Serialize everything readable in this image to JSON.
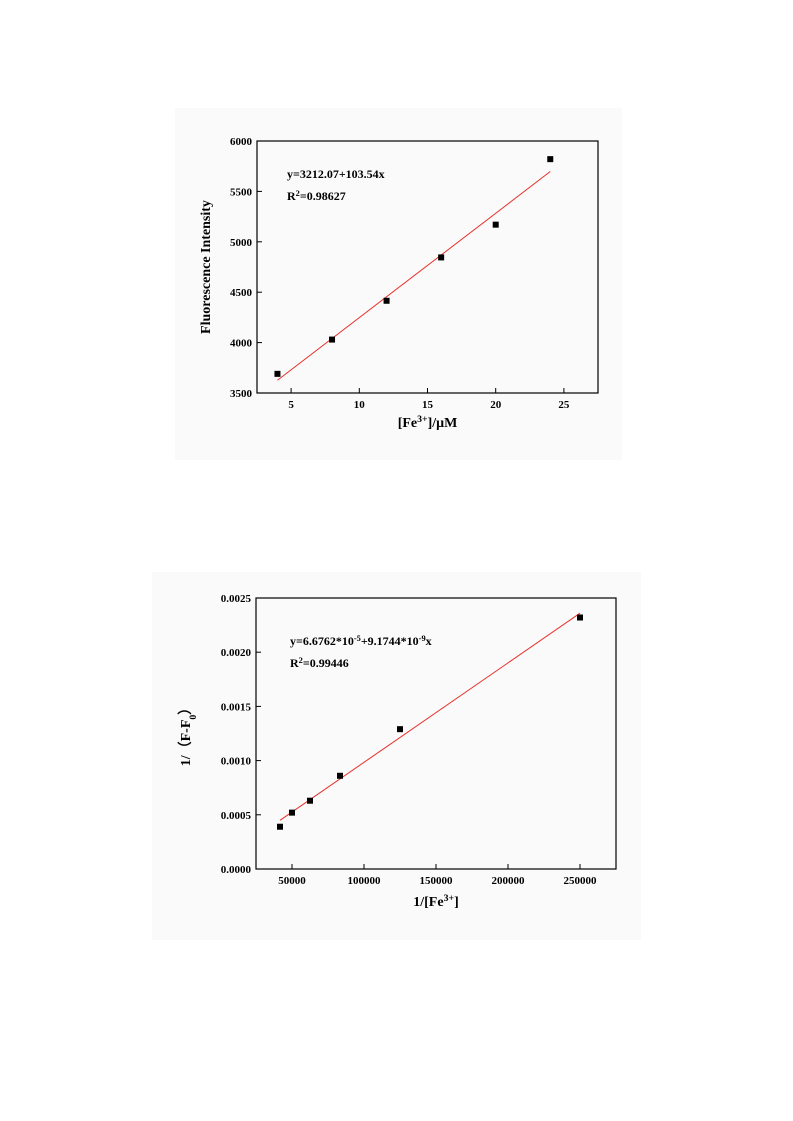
{
  "chart_data": [
    {
      "type": "scatter",
      "x_label": [
        {
          "text": "[Fe"
        },
        {
          "text": "3+",
          "style": "sup"
        },
        {
          "text": "]/μM"
        }
      ],
      "y_label": [
        {
          "text": "Fluorescence Intensity"
        }
      ],
      "annotations": [
        [
          {
            "text": "y=3212.07+103.54x"
          }
        ],
        [
          {
            "text": "R"
          },
          {
            "text": "2",
            "style": "sup"
          },
          {
            "text": "=0.98627"
          }
        ]
      ],
      "x": [
        4,
        8,
        12,
        16,
        20,
        24
      ],
      "values": [
        3690,
        4030,
        4415,
        4845,
        5170,
        5820
      ],
      "color": "#000000",
      "fit_line": {
        "x": [
          4,
          24
        ],
        "values": [
          3626.23,
          5697.03
        ],
        "color": "#e8302a"
      },
      "xlim": [
        2.5,
        27.5
      ],
      "xticks": [
        5,
        10,
        15,
        20,
        25
      ],
      "ylim": [
        3500,
        6000
      ],
      "yticks": [
        3500,
        4000,
        4500,
        5000,
        5500,
        6000
      ]
    },
    {
      "type": "scatter",
      "x_label": [
        {
          "text": "1/[Fe"
        },
        {
          "text": "3+",
          "style": "sup"
        },
        {
          "text": "]"
        }
      ],
      "y_label": [
        {
          "text": "1/（F-F"
        },
        {
          "text": "0",
          "style": "sub"
        },
        {
          "text": "）"
        }
      ],
      "annotations": [
        [
          {
            "text": "y=6.6762*10"
          },
          {
            "text": "-5",
            "style": "sup"
          },
          {
            "text": "+9.1744*10"
          },
          {
            "text": "-9",
            "style": "sup"
          },
          {
            "text": "x"
          }
        ],
        [
          {
            "text": "R"
          },
          {
            "text": "2",
            "style": "sup"
          },
          {
            "text": "=0.99446"
          }
        ]
      ],
      "x": [
        41667,
        50000,
        62500,
        83333,
        125000,
        250000
      ],
      "values": [
        0.00039,
        0.00052,
        0.00063,
        0.00086,
        0.00129,
        0.00232
      ],
      "color": "#000000",
      "fit_line": {
        "x": [
          41667,
          250000
        ],
        "values": [
          0.000449,
          0.00236
        ],
        "color": "#e8302a"
      },
      "xlim": [
        25000,
        275000
      ],
      "xticks": [
        50000,
        100000,
        150000,
        200000,
        250000
      ],
      "ylim": [
        0,
        0.0025
      ],
      "yticks": [
        {
          "value": 0,
          "label": "0.0000"
        },
        {
          "value": 0.0005,
          "label": "0.0005"
        },
        {
          "value": 0.001,
          "label": "0.0010"
        },
        {
          "value": 0.0015,
          "label": "0.0015"
        },
        {
          "value": 0.002,
          "label": "0.0020"
        },
        {
          "value": 0.0025,
          "label": "0.0025"
        }
      ]
    }
  ]
}
